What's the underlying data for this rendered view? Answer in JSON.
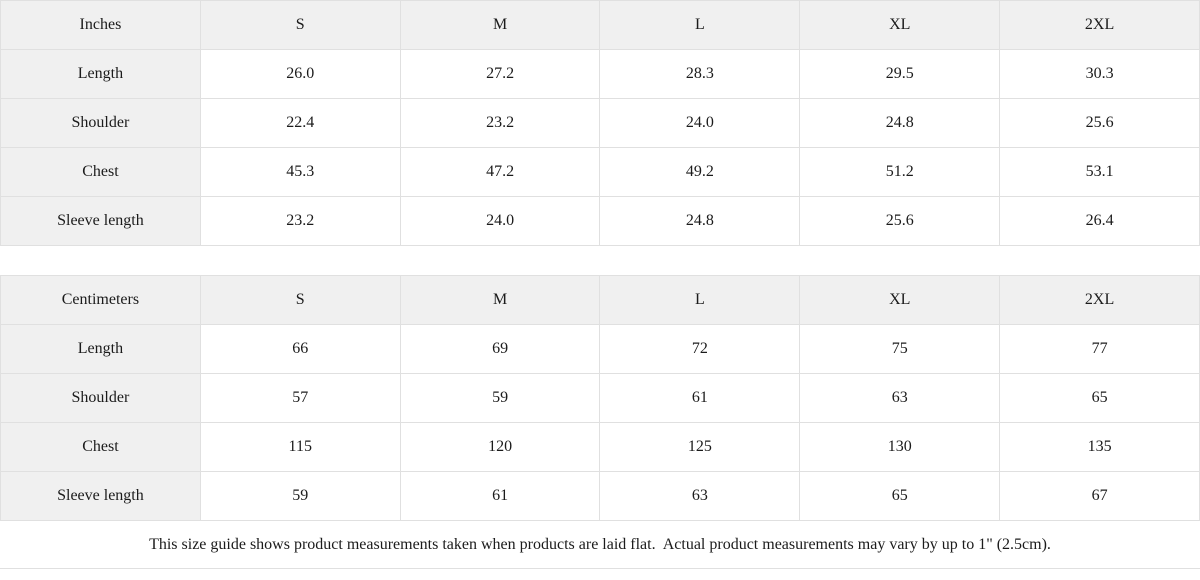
{
  "inches": {
    "unit_label": "Inches",
    "columns": [
      "S",
      "M",
      "L",
      "XL",
      "2XL"
    ],
    "rows": [
      {
        "label": "Length",
        "values": [
          "26.0",
          "27.2",
          "28.3",
          "29.5",
          "30.3"
        ]
      },
      {
        "label": "Shoulder",
        "values": [
          "22.4",
          "23.2",
          "24.0",
          "24.8",
          "25.6"
        ]
      },
      {
        "label": "Chest",
        "values": [
          "45.3",
          "47.2",
          "49.2",
          "51.2",
          "53.1"
        ]
      },
      {
        "label": "Sleeve length",
        "values": [
          "23.2",
          "24.0",
          "24.8",
          "25.6",
          "26.4"
        ]
      }
    ]
  },
  "centimeters": {
    "unit_label": "Centimeters",
    "columns": [
      "S",
      "M",
      "L",
      "XL",
      "2XL"
    ],
    "rows": [
      {
        "label": "Length",
        "values": [
          "66",
          "69",
          "72",
          "75",
          "77"
        ]
      },
      {
        "label": "Shoulder",
        "values": [
          "57",
          "59",
          "61",
          "63",
          "65"
        ]
      },
      {
        "label": "Chest",
        "values": [
          "115",
          "120",
          "125",
          "130",
          "135"
        ]
      },
      {
        "label": "Sleeve length",
        "values": [
          "59",
          "61",
          "63",
          "65",
          "67"
        ]
      }
    ]
  },
  "footer": {
    "note": "This size guide shows product measurements taken when products are laid flat.  Actual product measurements may vary by up to 1\" (2.5cm)."
  },
  "colors": {
    "header_bg": "#f0f0f0",
    "border": "#e0e0e0",
    "text": "#1b1b1b"
  }
}
